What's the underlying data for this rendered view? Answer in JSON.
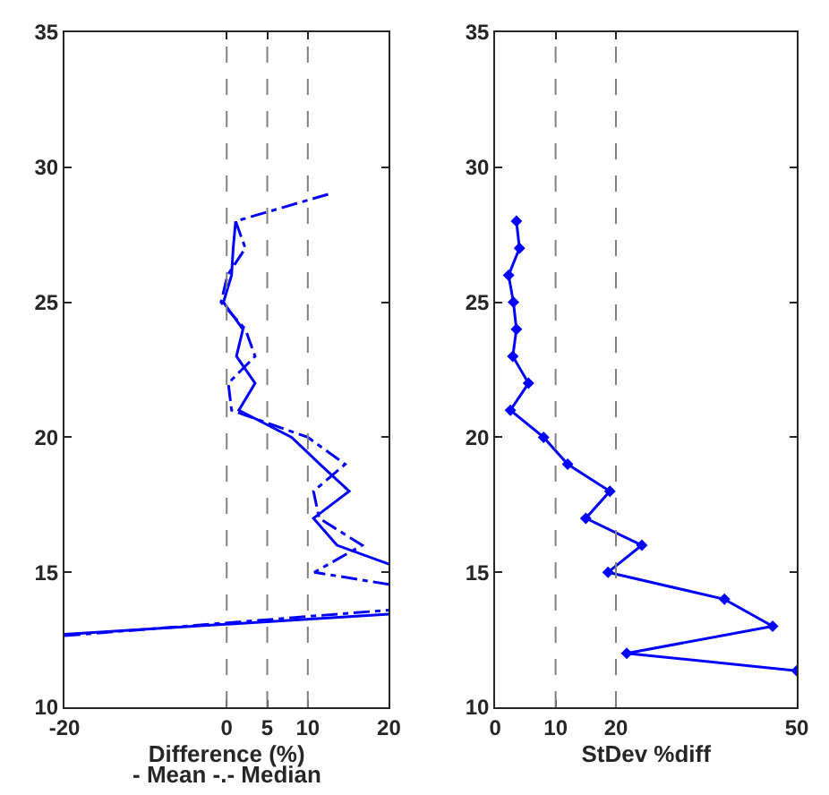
{
  "chart_data": [
    {
      "type": "line",
      "xlabel": "Difference (%)",
      "annotations": [
        "- Mean -.- Median"
      ],
      "xlim": [
        -20,
        20
      ],
      "xticks": [
        -20,
        0,
        5,
        10,
        20
      ],
      "ylim": [
        10,
        35
      ],
      "yticks": [
        10,
        15,
        20,
        25,
        30,
        35
      ],
      "marker": "none",
      "series": [
        {
          "color": "#0000ff",
          "line_style": "solid",
          "x": [
            -20,
            20,
            null,
            20,
            13.6,
            10.7,
            15.1,
            11.5,
            8,
            1.5,
            3.5,
            1.2,
            2,
            -0.4,
            0.6,
            0.8,
            1.1
          ],
          "values": [
            12.7,
            13.45,
            null,
            15.3,
            16,
            17,
            18,
            19,
            20,
            21,
            22,
            23,
            24,
            25,
            26,
            27,
            28
          ]
        },
        {
          "color": "#0000ff",
          "line_style": "dashdot",
          "x": [
            -20,
            20,
            null,
            20,
            10.8,
            16.7,
            11.4,
            10.7,
            14.6,
            10,
            0.6,
            0.2,
            3.5,
            2.3,
            -0.7,
            0.1,
            2.3,
            1.1,
            12.5
          ],
          "values": [
            12.65,
            13.6,
            null,
            14.55,
            15,
            16,
            17,
            18,
            19,
            20,
            21,
            22,
            23,
            24,
            25,
            26,
            27,
            28,
            29
          ]
        }
      ],
      "ref_lines": [
        {
          "axis": "x",
          "value": 0,
          "color": "#808080",
          "line_style": "dashed"
        },
        {
          "axis": "x",
          "value": 5,
          "color": "#808080",
          "line_style": "dashed"
        },
        {
          "axis": "x",
          "value": 10,
          "color": "#808080",
          "line_style": "dashed"
        }
      ]
    },
    {
      "type": "line",
      "xlabel": "StDev %diff",
      "xlim": [
        0,
        50
      ],
      "xticks": [
        0,
        10,
        20,
        50
      ],
      "ylim": [
        10,
        35
      ],
      "yticks": [
        10,
        15,
        20,
        25,
        30,
        35
      ],
      "marker": "diamond",
      "series": [
        {
          "color": "#0000ff",
          "line_style": "solid",
          "x": [
            50,
            21.8,
            46,
            38,
            18.7,
            24.3,
            15,
            19,
            12,
            8,
            2.5,
            5.5,
            2.9,
            3.5,
            3,
            2.2,
            4,
            3.5
          ],
          "values": [
            11.35,
            12,
            13,
            14,
            15,
            16,
            17,
            18,
            19,
            20,
            21,
            22,
            23,
            24,
            25,
            26,
            27,
            28
          ]
        }
      ],
      "ref_lines": [
        {
          "axis": "x",
          "value": 10,
          "color": "#808080",
          "line_style": "dashed"
        },
        {
          "axis": "x",
          "value": 20,
          "color": "#808080",
          "line_style": "dashed"
        }
      ]
    }
  ]
}
